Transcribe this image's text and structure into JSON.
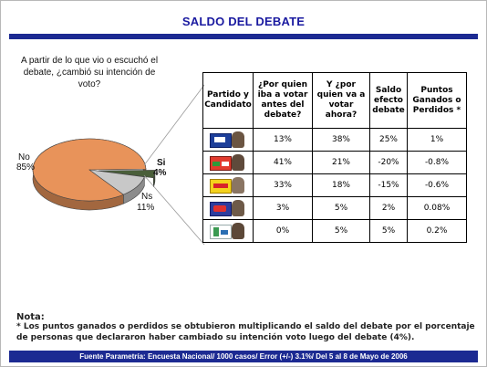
{
  "title": "SALDO DEL DEBATE",
  "question": "A partir de lo que vio o escuchó el debate, ¿cambió su intención de voto?",
  "chart_data": [
    {
      "type": "pie",
      "slices": [
        {
          "label": "No",
          "value": 85,
          "value_label": "85%",
          "color": "#e8935a"
        },
        {
          "label": "Si",
          "value": 4,
          "value_label": "4%",
          "color": "#4a5f3a"
        },
        {
          "label": "Ns",
          "value": 11,
          "value_label": "11%",
          "color": "#c8c8c8"
        }
      ]
    },
    {
      "type": "table",
      "columns": [
        "Partido y Candidato",
        "¿Por quien iba a votar antes del debate?",
        "Y ¿por quien va a votar ahora?",
        "Saldo efecto debate",
        "Puntos Ganados o Perdidos *"
      ],
      "rows": [
        {
          "logo": "pan-logo",
          "antes": "13%",
          "ahora": "38%",
          "saldo": "25%",
          "puntos": "1%"
        },
        {
          "logo": "alianza-por-mexico-logo",
          "antes": "41%",
          "ahora": "21%",
          "saldo": "-20%",
          "puntos": "-0.8%"
        },
        {
          "logo": "por-el-bien-de-todos-logo",
          "antes": "33%",
          "ahora": "18%",
          "saldo": "-15%",
          "puntos": "-0.6%"
        },
        {
          "logo": "nueva-alianza-logo",
          "antes": "3%",
          "ahora": "5%",
          "saldo": "2%",
          "puntos": "0.08%"
        },
        {
          "logo": "alternativa-logo",
          "antes": "0%",
          "ahora": "5%",
          "saldo": "5%",
          "puntos": "0.2%"
        }
      ]
    }
  ],
  "note": {
    "label": "Nota:",
    "text": "* Los puntos ganados o perdidos se obtubieron multiplicando el saldo del debate por el porcentaje de personas que declararon haber cambiado su intención voto luego del debate (4%)."
  },
  "footer": "Fuente Parametría: Encuesta Nacional/ 1000 casos/ Error (+/-) 3.1%/ Del 5 al 8 de Mayo de 2006"
}
